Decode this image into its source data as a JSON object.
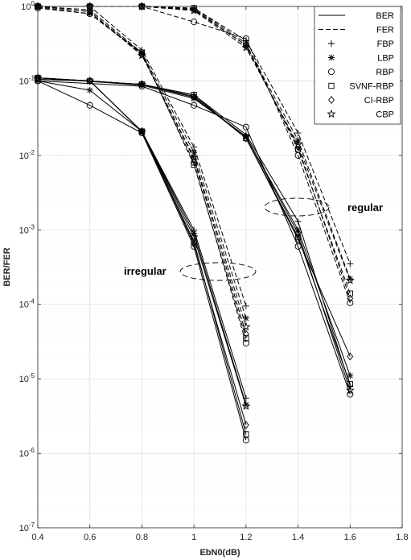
{
  "chart_data": {
    "type": "line",
    "xlabel": "EbN0(dB)",
    "ylabel": "BER/FER",
    "xlim": [
      0.4,
      1.8
    ],
    "ylim": [
      1e-07,
      1
    ],
    "yscale": "log",
    "grid": true,
    "minor_grid": true,
    "legend_position": "top-right",
    "x_ticks": [
      "0.4",
      "0.6",
      "0.8",
      "1",
      "1.2",
      "1.4",
      "1.6",
      "1.8"
    ],
    "y_ticks": [
      {
        "base": "10",
        "exp": "-7"
      },
      {
        "base": "10",
        "exp": "-6"
      },
      {
        "base": "10",
        "exp": "-5"
      },
      {
        "base": "10",
        "exp": "-4"
      },
      {
        "base": "10",
        "exp": "-3"
      },
      {
        "base": "10",
        "exp": "-2"
      },
      {
        "base": "10",
        "exp": "-1"
      },
      {
        "base": "10",
        "exp": "0"
      }
    ],
    "legend": [
      {
        "label": "BER",
        "style": "solid"
      },
      {
        "label": "FER",
        "style": "dashed"
      },
      {
        "label": "FBP",
        "marker": "plus"
      },
      {
        "label": "LBP",
        "marker": "asterisk"
      },
      {
        "label": "RBP",
        "marker": "circle"
      },
      {
        "label": "SVNF-RBP",
        "marker": "square"
      },
      {
        "label": "CI-RBP",
        "marker": "diamond"
      },
      {
        "label": "CBP",
        "marker": "star"
      }
    ],
    "annotations": [
      {
        "text": "irregular",
        "x": 0.95,
        "y": 0.00035
      },
      {
        "text": "regular",
        "x": 1.58,
        "y": 0.002
      }
    ],
    "series": [
      {
        "group": "irregular",
        "metric": "BER",
        "marker": "plus",
        "x": [
          0.4,
          0.6,
          0.8,
          1.0,
          1.2
        ],
        "y": [
          0.11,
          0.1,
          0.021,
          0.001,
          5.5e-06
        ]
      },
      {
        "group": "irregular",
        "metric": "BER",
        "marker": "asterisk",
        "x": [
          0.4,
          0.6,
          0.8,
          1.0,
          1.2
        ],
        "y": [
          0.1,
          0.075,
          0.021,
          0.0009,
          4.5e-06
        ]
      },
      {
        "group": "irregular",
        "metric": "BER",
        "marker": "circle",
        "x": [
          0.4,
          0.6,
          0.8,
          1.0,
          1.2
        ],
        "y": [
          0.1,
          0.047,
          0.02,
          0.0006,
          1.5e-06
        ]
      },
      {
        "group": "irregular",
        "metric": "BER",
        "marker": "square",
        "x": [
          0.4,
          0.6,
          0.8,
          1.0,
          1.2
        ],
        "y": [
          0.11,
          0.1,
          0.021,
          0.0007,
          1.8e-06
        ]
      },
      {
        "group": "irregular",
        "metric": "BER",
        "marker": "diamond",
        "x": [
          0.4,
          0.6,
          0.8,
          1.0,
          1.2
        ],
        "y": [
          0.105,
          0.1,
          0.021,
          0.00065,
          2.4e-06
        ]
      },
      {
        "group": "irregular",
        "metric": "BER",
        "marker": "star",
        "x": [
          0.4,
          0.6,
          0.8,
          1.0,
          1.2
        ],
        "y": [
          0.105,
          0.1,
          0.021,
          0.0008,
          4.3e-06
        ]
      },
      {
        "group": "irregular",
        "metric": "FER",
        "marker": "plus",
        "x": [
          0.4,
          0.6,
          0.8,
          1.0,
          1.2
        ],
        "y": [
          1.0,
          1.0,
          0.26,
          0.013,
          9.5e-05
        ]
      },
      {
        "group": "irregular",
        "metric": "FER",
        "marker": "asterisk",
        "x": [
          0.4,
          0.6,
          0.8,
          1.0,
          1.2
        ],
        "y": [
          0.98,
          0.8,
          0.24,
          0.011,
          6.5e-05
        ]
      },
      {
        "group": "irregular",
        "metric": "FER",
        "marker": "circle",
        "x": [
          0.4,
          0.6,
          0.8,
          1.0,
          1.2
        ],
        "y": [
          0.95,
          0.8,
          0.23,
          0.008,
          3e-05
        ]
      },
      {
        "group": "irregular",
        "metric": "FER",
        "marker": "square",
        "x": [
          0.4,
          0.6,
          0.8,
          1.0,
          1.2
        ],
        "y": [
          1.0,
          0.9,
          0.24,
          0.0075,
          3.5e-05
        ]
      },
      {
        "group": "irregular",
        "metric": "FER",
        "marker": "diamond",
        "x": [
          0.4,
          0.6,
          0.8,
          1.0,
          1.2
        ],
        "y": [
          1.0,
          0.85,
          0.23,
          0.009,
          4e-05
        ]
      },
      {
        "group": "irregular",
        "metric": "FER",
        "marker": "star",
        "x": [
          0.4,
          0.6,
          0.8,
          1.0,
          1.2
        ],
        "y": [
          1.0,
          0.85,
          0.22,
          0.0095,
          5e-05
        ]
      },
      {
        "group": "regular",
        "metric": "BER",
        "marker": "plus",
        "x": [
          0.4,
          0.8,
          1.0,
          1.2,
          1.4,
          1.6
        ],
        "y": [
          0.11,
          0.09,
          0.065,
          0.019,
          0.0013,
          8e-06
        ]
      },
      {
        "group": "regular",
        "metric": "BER",
        "marker": "asterisk",
        "x": [
          0.4,
          0.8,
          1.0,
          1.2,
          1.4,
          1.6
        ],
        "y": [
          0.11,
          0.088,
          0.058,
          0.018,
          0.001,
          1.1e-05
        ]
      },
      {
        "group": "regular",
        "metric": "BER",
        "marker": "circle",
        "x": [
          0.4,
          0.8,
          1.0,
          1.2,
          1.4,
          1.6
        ],
        "y": [
          0.1,
          0.085,
          0.047,
          0.024,
          0.0006,
          6.2e-06
        ]
      },
      {
        "group": "regular",
        "metric": "BER",
        "marker": "square",
        "x": [
          0.4,
          0.8,
          1.0,
          1.2,
          1.4,
          1.6
        ],
        "y": [
          0.11,
          0.09,
          0.065,
          0.017,
          0.0008,
          8.5e-06
        ]
      },
      {
        "group": "regular",
        "metric": "BER",
        "marker": "diamond",
        "x": [
          0.4,
          0.8,
          1.0,
          1.2,
          1.4,
          1.6
        ],
        "y": [
          0.11,
          0.09,
          0.062,
          0.017,
          0.00075,
          2e-05
        ]
      },
      {
        "group": "regular",
        "metric": "BER",
        "marker": "star",
        "x": [
          0.4,
          0.8,
          1.0,
          1.2,
          1.4,
          1.6
        ],
        "y": [
          0.11,
          0.09,
          0.06,
          0.018,
          0.0009,
          7e-06
        ]
      },
      {
        "group": "regular",
        "metric": "FER",
        "marker": "plus",
        "x": [
          0.4,
          0.6,
          0.8,
          1.0,
          1.2,
          1.4,
          1.6
        ],
        "y": [
          1.0,
          1.0,
          1.0,
          0.95,
          0.35,
          0.02,
          0.00035
        ]
      },
      {
        "group": "regular",
        "metric": "FER",
        "marker": "asterisk",
        "x": [
          0.4,
          0.6,
          0.8,
          1.0,
          1.2,
          1.4,
          1.6
        ],
        "y": [
          1.0,
          1.0,
          1.0,
          0.9,
          0.3,
          0.016,
          0.00022
        ]
      },
      {
        "group": "regular",
        "metric": "FER",
        "marker": "circle",
        "x": [
          0.4,
          0.6,
          0.8,
          1.0,
          1.2,
          1.4,
          1.6
        ],
        "y": [
          1.0,
          1.0,
          1.0,
          0.62,
          0.37,
          0.01,
          0.000105
        ]
      },
      {
        "group": "regular",
        "metric": "FER",
        "marker": "square",
        "x": [
          0.4,
          0.6,
          0.8,
          1.0,
          1.2,
          1.4,
          1.6
        ],
        "y": [
          1.0,
          1.0,
          1.0,
          0.95,
          0.32,
          0.012,
          0.00014
        ]
      },
      {
        "group": "regular",
        "metric": "FER",
        "marker": "diamond",
        "x": [
          0.4,
          0.6,
          0.8,
          1.0,
          1.2,
          1.4,
          1.6
        ],
        "y": [
          1.0,
          1.0,
          1.0,
          0.92,
          0.3,
          0.013,
          0.00012
        ]
      },
      {
        "group": "regular",
        "metric": "FER",
        "marker": "star",
        "x": [
          0.4,
          0.6,
          0.8,
          1.0,
          1.2,
          1.4,
          1.6
        ],
        "y": [
          1.0,
          1.0,
          1.0,
          0.88,
          0.28,
          0.014,
          0.00021
        ]
      }
    ],
    "colors": {
      "line": "#000000",
      "grid_major": "#e1e1e1",
      "grid_minor": "#efefef",
      "axis": "#262626"
    }
  }
}
